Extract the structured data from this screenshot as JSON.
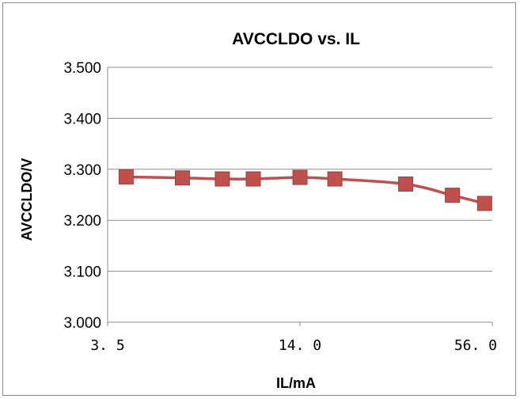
{
  "chart_data": {
    "type": "line",
    "title": "AVCCLDO vs. IL",
    "xlabel": "IL/mA",
    "ylabel": "AVCCLDO/V",
    "x_scale": "log",
    "xlim": [
      3.5,
      56.0
    ],
    "ylim": [
      3.0,
      3.5
    ],
    "x_tick_labels": [
      "3. 5",
      "14. 0",
      "56. 0"
    ],
    "x_ticks": [
      3.5,
      14.0,
      56.0
    ],
    "y_tick_labels": [
      "3.000",
      "3.100",
      "3.200",
      "3.300",
      "3.400",
      "3.500"
    ],
    "y_ticks": [
      3.0,
      3.1,
      3.2,
      3.3,
      3.4,
      3.5
    ],
    "grid": "horizontal",
    "legend": "none",
    "series": [
      {
        "color": "#c0504d",
        "marker": "square",
        "x": [
          4.0,
          6.0,
          8.0,
          10.0,
          14.0,
          18.0,
          30.0,
          42.0,
          53.0
        ],
        "values": [
          3.285,
          3.283,
          3.281,
          3.281,
          3.284,
          3.281,
          3.271,
          3.249,
          3.233
        ]
      }
    ]
  }
}
